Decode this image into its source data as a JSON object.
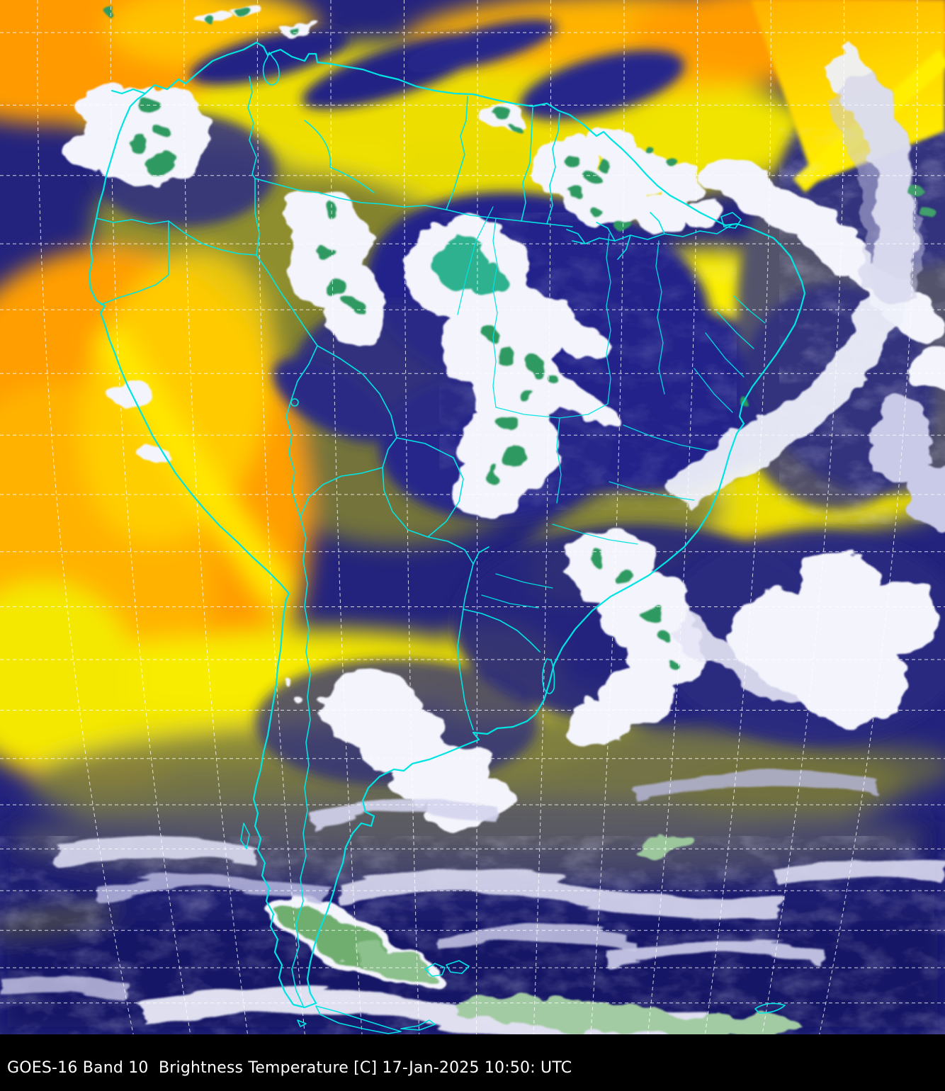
{
  "caption": {
    "text": "GOES-16 Band 10  Brightness Temperature [C] 17-Jan-2025 10:50: UTC"
  },
  "colors": {
    "border_cyan": "#00e4e4",
    "graticule_white": "#ffffff",
    "caption_background": "#000000",
    "caption_text": "#ffffff",
    "warm_orange": "#ff9d00",
    "warm_yellow": "#f2e600",
    "olive_moist": "#83832d",
    "cold_navy": "#23237d",
    "cloud_white": "#f4f4fc",
    "cloud_lavender": "#b9b9e0",
    "convective_green": "#2e9960",
    "convective_teal": "#2fb18e",
    "pale_green": "#a3cba3"
  }
}
